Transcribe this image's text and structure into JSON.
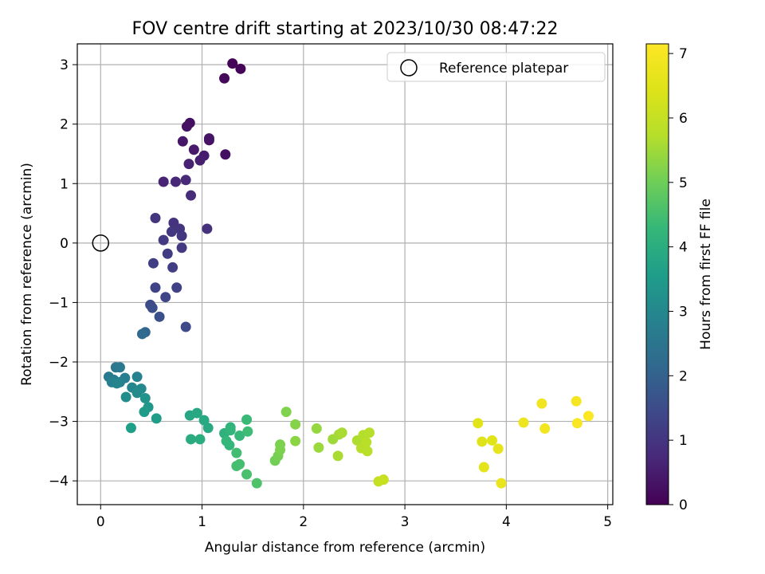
{
  "chart_data": {
    "type": "scatter",
    "title": "FOV centre drift starting at 2023/10/30 08:47:22",
    "xlabel": "Angular distance from reference (arcmin)",
    "ylabel": "Rotation from reference (arcmin)",
    "xlim": [
      -0.23,
      5.05
    ],
    "ylim": [
      -4.4,
      3.35
    ],
    "xticks": [
      0,
      1,
      2,
      3,
      4,
      5
    ],
    "yticks": [
      -4,
      -3,
      -2,
      -1,
      0,
      1,
      2,
      3
    ],
    "grid": true,
    "legend": {
      "placement": "upper right",
      "entries": [
        "Reference platepar"
      ]
    },
    "reference_point": {
      "x": 0,
      "y": 0
    },
    "colorbar": {
      "label": "Hours from first FF file",
      "range": [
        0,
        7.15
      ],
      "ticks": [
        0,
        1,
        2,
        3,
        4,
        5,
        6,
        7
      ],
      "colormap": "viridis"
    },
    "points": [
      {
        "x": 1.3,
        "y": 3.02,
        "c": 0.05
      },
      {
        "x": 1.38,
        "y": 2.93,
        "c": 0.1
      },
      {
        "x": 1.22,
        "y": 2.77,
        "c": 0.15
      },
      {
        "x": 0.88,
        "y": 2.02,
        "c": 0.25
      },
      {
        "x": 0.85,
        "y": 1.96,
        "c": 0.3
      },
      {
        "x": 1.07,
        "y": 1.73,
        "c": 0.3
      },
      {
        "x": 1.07,
        "y": 1.76,
        "c": 0.35
      },
      {
        "x": 0.81,
        "y": 1.71,
        "c": 0.4
      },
      {
        "x": 0.92,
        "y": 1.57,
        "c": 0.45
      },
      {
        "x": 1.23,
        "y": 1.49,
        "c": 0.25
      },
      {
        "x": 1.02,
        "y": 1.47,
        "c": 0.5
      },
      {
        "x": 0.98,
        "y": 1.39,
        "c": 0.55
      },
      {
        "x": 0.87,
        "y": 1.33,
        "c": 0.6
      },
      {
        "x": 0.62,
        "y": 1.03,
        "c": 0.65
      },
      {
        "x": 0.74,
        "y": 1.03,
        "c": 0.7
      },
      {
        "x": 0.84,
        "y": 1.06,
        "c": 0.75
      },
      {
        "x": 0.89,
        "y": 0.8,
        "c": 0.8
      },
      {
        "x": 0.54,
        "y": 0.42,
        "c": 1.0
      },
      {
        "x": 0.72,
        "y": 0.34,
        "c": 0.95
      },
      {
        "x": 0.78,
        "y": 0.24,
        "c": 1.0
      },
      {
        "x": 1.05,
        "y": 0.24,
        "c": 0.9
      },
      {
        "x": 0.7,
        "y": 0.19,
        "c": 1.05
      },
      {
        "x": 0.8,
        "y": 0.12,
        "c": 1.05
      },
      {
        "x": 0.62,
        "y": 0.05,
        "c": 1.1
      },
      {
        "x": 0.8,
        "y": -0.08,
        "c": 1.1
      },
      {
        "x": 0.66,
        "y": -0.18,
        "c": 1.15
      },
      {
        "x": 0.52,
        "y": -0.34,
        "c": 1.2
      },
      {
        "x": 0.71,
        "y": -0.41,
        "c": 1.2
      },
      {
        "x": 0.54,
        "y": -0.75,
        "c": 1.3
      },
      {
        "x": 0.75,
        "y": -0.75,
        "c": 1.25
      },
      {
        "x": 0.64,
        "y": -0.91,
        "c": 1.35
      },
      {
        "x": 0.49,
        "y": -1.04,
        "c": 1.5
      },
      {
        "x": 0.51,
        "y": -1.09,
        "c": 1.55
      },
      {
        "x": 0.58,
        "y": -1.24,
        "c": 1.6
      },
      {
        "x": 0.84,
        "y": -1.41,
        "c": 1.45
      },
      {
        "x": 0.44,
        "y": -1.5,
        "c": 2.1
      },
      {
        "x": 0.41,
        "y": -1.53,
        "c": 2.2
      },
      {
        "x": 0.15,
        "y": -2.09,
        "c": 2.55
      },
      {
        "x": 0.19,
        "y": -2.09,
        "c": 2.6
      },
      {
        "x": 0.08,
        "y": -2.25,
        "c": 2.65
      },
      {
        "x": 0.13,
        "y": -2.3,
        "c": 2.7
      },
      {
        "x": 0.24,
        "y": -2.27,
        "c": 2.75
      },
      {
        "x": 0.36,
        "y": -2.25,
        "c": 2.85
      },
      {
        "x": 0.11,
        "y": -2.34,
        "c": 2.8
      },
      {
        "x": 0.19,
        "y": -2.34,
        "c": 2.8
      },
      {
        "x": 0.16,
        "y": -2.36,
        "c": 2.9
      },
      {
        "x": 0.31,
        "y": -2.43,
        "c": 3.0
      },
      {
        "x": 0.4,
        "y": -2.45,
        "c": 3.05
      },
      {
        "x": 0.36,
        "y": -2.52,
        "c": 3.1
      },
      {
        "x": 0.25,
        "y": -2.59,
        "c": 3.15
      },
      {
        "x": 0.44,
        "y": -2.61,
        "c": 3.3
      },
      {
        "x": 0.47,
        "y": -2.76,
        "c": 3.4
      },
      {
        "x": 0.43,
        "y": -2.84,
        "c": 3.5
      },
      {
        "x": 0.55,
        "y": -2.95,
        "c": 3.55
      },
      {
        "x": 0.3,
        "y": -3.11,
        "c": 3.6
      },
      {
        "x": 0.88,
        "y": -2.9,
        "c": 3.8
      },
      {
        "x": 0.95,
        "y": -2.86,
        "c": 3.85
      },
      {
        "x": 1.02,
        "y": -2.98,
        "c": 3.9
      },
      {
        "x": 1.06,
        "y": -3.11,
        "c": 3.9
      },
      {
        "x": 0.89,
        "y": -3.3,
        "c": 3.95
      },
      {
        "x": 0.98,
        "y": -3.3,
        "c": 4.0
      },
      {
        "x": 1.22,
        "y": -3.2,
        "c": 4.1
      },
      {
        "x": 1.28,
        "y": -3.1,
        "c": 4.15
      },
      {
        "x": 1.28,
        "y": -3.15,
        "c": 4.2
      },
      {
        "x": 1.27,
        "y": -3.4,
        "c": 4.25
      },
      {
        "x": 1.24,
        "y": -3.33,
        "c": 4.25
      },
      {
        "x": 1.37,
        "y": -3.24,
        "c": 4.3
      },
      {
        "x": 1.44,
        "y": -2.97,
        "c": 4.35
      },
      {
        "x": 1.45,
        "y": -3.17,
        "c": 4.4
      },
      {
        "x": 1.34,
        "y": -3.53,
        "c": 4.45
      },
      {
        "x": 1.34,
        "y": -3.75,
        "c": 4.5
      },
      {
        "x": 1.37,
        "y": -3.72,
        "c": 4.5
      },
      {
        "x": 1.44,
        "y": -3.89,
        "c": 4.55
      },
      {
        "x": 1.54,
        "y": -4.04,
        "c": 4.6
      },
      {
        "x": 1.72,
        "y": -3.66,
        "c": 5.05
      },
      {
        "x": 1.75,
        "y": -3.58,
        "c": 5.1
      },
      {
        "x": 1.77,
        "y": -3.48,
        "c": 5.15
      },
      {
        "x": 1.77,
        "y": -3.39,
        "c": 5.15
      },
      {
        "x": 1.83,
        "y": -2.84,
        "c": 5.2
      },
      {
        "x": 1.92,
        "y": -3.05,
        "c": 5.25
      },
      {
        "x": 1.92,
        "y": -3.33,
        "c": 5.3
      },
      {
        "x": 2.13,
        "y": -3.12,
        "c": 5.4
      },
      {
        "x": 2.15,
        "y": -3.44,
        "c": 5.45
      },
      {
        "x": 2.29,
        "y": -3.3,
        "c": 5.5
      },
      {
        "x": 2.35,
        "y": -3.22,
        "c": 5.55
      },
      {
        "x": 2.38,
        "y": -3.19,
        "c": 5.6
      },
      {
        "x": 2.34,
        "y": -3.58,
        "c": 5.6
      },
      {
        "x": 2.53,
        "y": -3.32,
        "c": 5.65
      },
      {
        "x": 2.59,
        "y": -3.23,
        "c": 5.7
      },
      {
        "x": 2.65,
        "y": -3.19,
        "c": 5.75
      },
      {
        "x": 2.57,
        "y": -3.45,
        "c": 5.75
      },
      {
        "x": 2.62,
        "y": -3.35,
        "c": 5.8
      },
      {
        "x": 2.63,
        "y": -3.5,
        "c": 5.8
      },
      {
        "x": 2.74,
        "y": -4.01,
        "c": 6.0
      },
      {
        "x": 2.79,
        "y": -3.98,
        "c": 6.05
      },
      {
        "x": 3.72,
        "y": -3.03,
        "c": 6.55
      },
      {
        "x": 3.76,
        "y": -3.34,
        "c": 6.5
      },
      {
        "x": 3.86,
        "y": -3.32,
        "c": 6.55
      },
      {
        "x": 3.78,
        "y": -3.77,
        "c": 6.6
      },
      {
        "x": 3.92,
        "y": -3.46,
        "c": 6.65
      },
      {
        "x": 3.95,
        "y": -4.04,
        "c": 6.7
      },
      {
        "x": 4.17,
        "y": -3.02,
        "c": 6.8
      },
      {
        "x": 4.35,
        "y": -2.7,
        "c": 6.85
      },
      {
        "x": 4.38,
        "y": -3.12,
        "c": 6.9
      },
      {
        "x": 4.69,
        "y": -2.66,
        "c": 7.0
      },
      {
        "x": 4.7,
        "y": -3.03,
        "c": 7.05
      },
      {
        "x": 4.81,
        "y": -2.91,
        "c": 7.1
      }
    ]
  }
}
